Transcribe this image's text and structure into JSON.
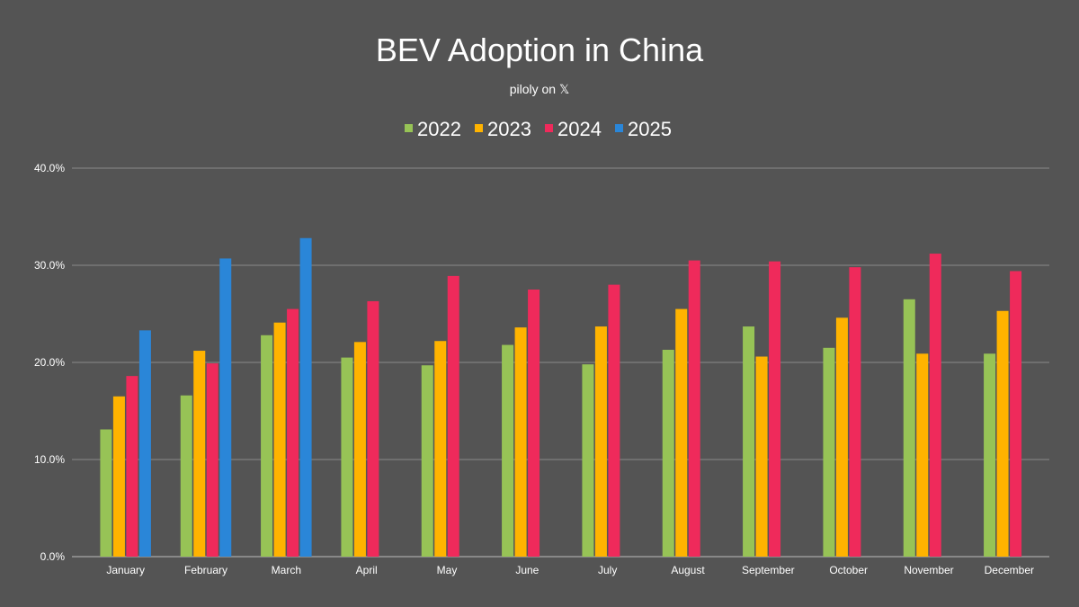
{
  "chart_data": {
    "type": "bar",
    "title": "BEV Adoption in China",
    "subtitle": "piloly on 𝕏",
    "xlabel": "",
    "ylabel": "",
    "ylim": [
      0,
      40
    ],
    "yticks": [
      "0.0%",
      "10.0%",
      "20.0%",
      "30.0%",
      "40.0%"
    ],
    "grid": true,
    "legend_position": "top-center",
    "categories": [
      "January",
      "February",
      "March",
      "April",
      "May",
      "June",
      "July",
      "August",
      "September",
      "October",
      "November",
      "December"
    ],
    "series": [
      {
        "name": "2022",
        "color": "#97c356",
        "values": [
          13.1,
          16.6,
          22.8,
          20.5,
          19.7,
          21.8,
          19.8,
          21.3,
          23.7,
          21.5,
          26.5,
          20.9
        ]
      },
      {
        "name": "2023",
        "color": "#ffb300",
        "values": [
          16.5,
          21.2,
          24.1,
          22.1,
          22.2,
          23.6,
          23.7,
          25.5,
          20.6,
          24.6,
          20.9,
          25.3
        ]
      },
      {
        "name": "2024",
        "color": "#ef2a5b",
        "values": [
          18.6,
          19.9,
          25.5,
          26.3,
          28.9,
          27.5,
          28.0,
          30.5,
          30.4,
          29.8,
          31.2,
          29.4
        ]
      },
      {
        "name": "2025",
        "color": "#2a86d8",
        "values": [
          23.3,
          30.7,
          32.8,
          null,
          null,
          null,
          null,
          null,
          null,
          null,
          null,
          null
        ]
      }
    ]
  }
}
